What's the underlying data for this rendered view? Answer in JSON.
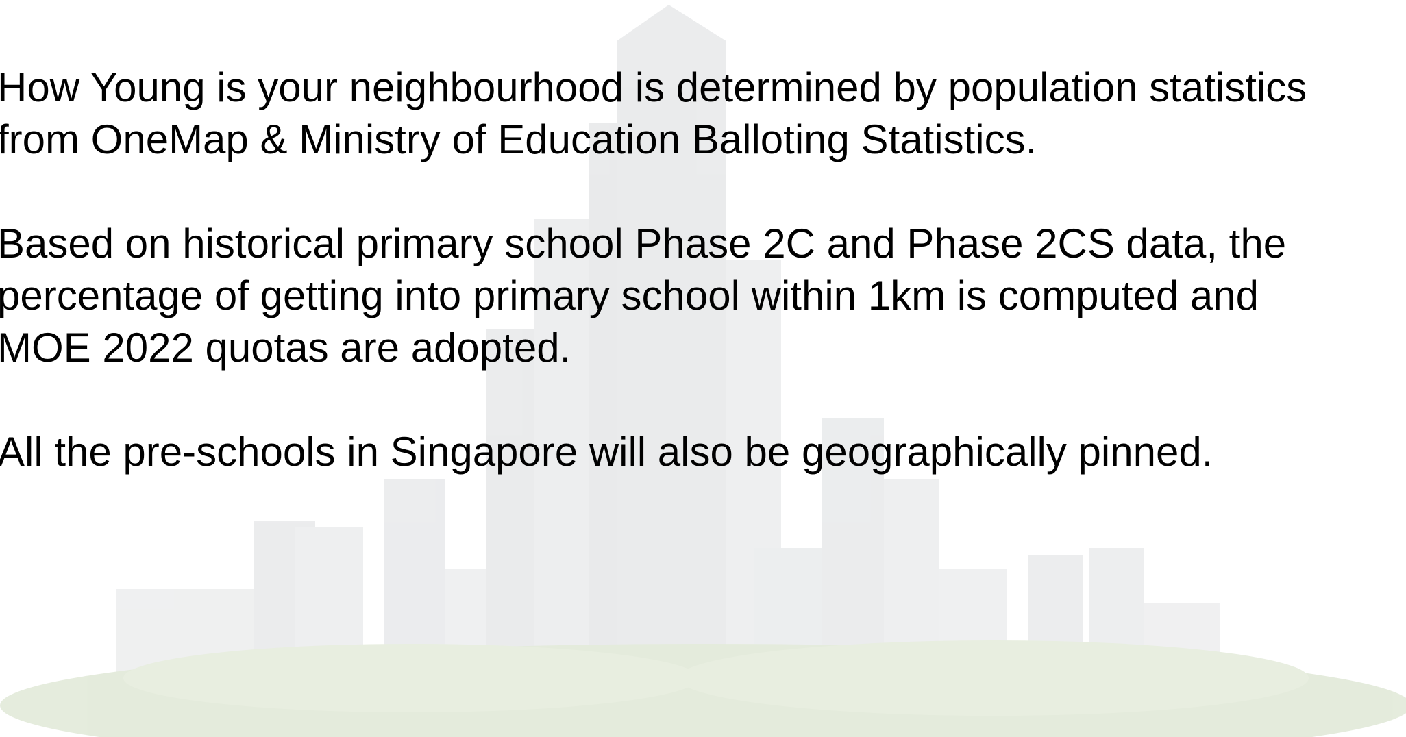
{
  "paragraphs": [
    {
      "lines": [
        "How Young is your neighbourhood is determined by population statistics",
        "from OneMap & Ministry of Education Balloting Statistics."
      ]
    },
    {
      "lines": [
        "Based on historical primary school Phase 2C and Phase 2CS data, the",
        "percentage of getting into primary school within 1km is computed and",
        "MOE 2022 quotas are adopted."
      ]
    },
    {
      "lines": [
        "All the pre-schools in Singapore will also be geographically pinned."
      ]
    }
  ]
}
